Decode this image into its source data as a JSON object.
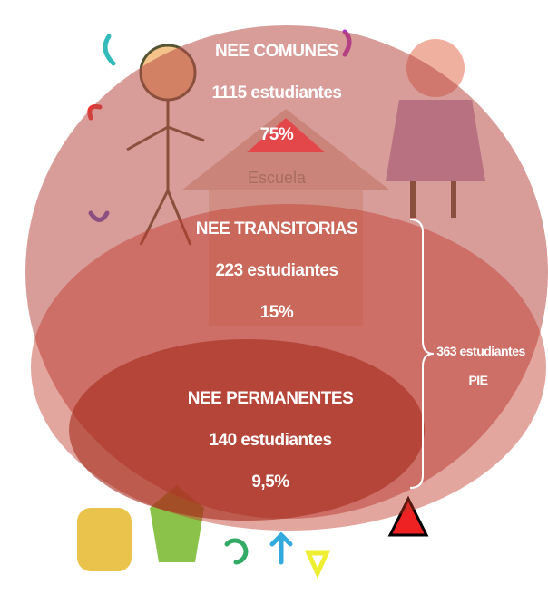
{
  "groups": [
    {
      "title": "NEE COMUNES",
      "count": "1115 estudiantes",
      "percent": "75%"
    },
    {
      "title": "NEE TRANSITORIAS",
      "count": "223 estudiantes",
      "percent": "15%"
    },
    {
      "title": "NEE PERMANENTES",
      "count": "140 estudiantes",
      "percent": "9,5%"
    }
  ],
  "school_sign": "Escuela",
  "brace": {
    "count": "363 estudiantes",
    "label": "PIE"
  }
}
